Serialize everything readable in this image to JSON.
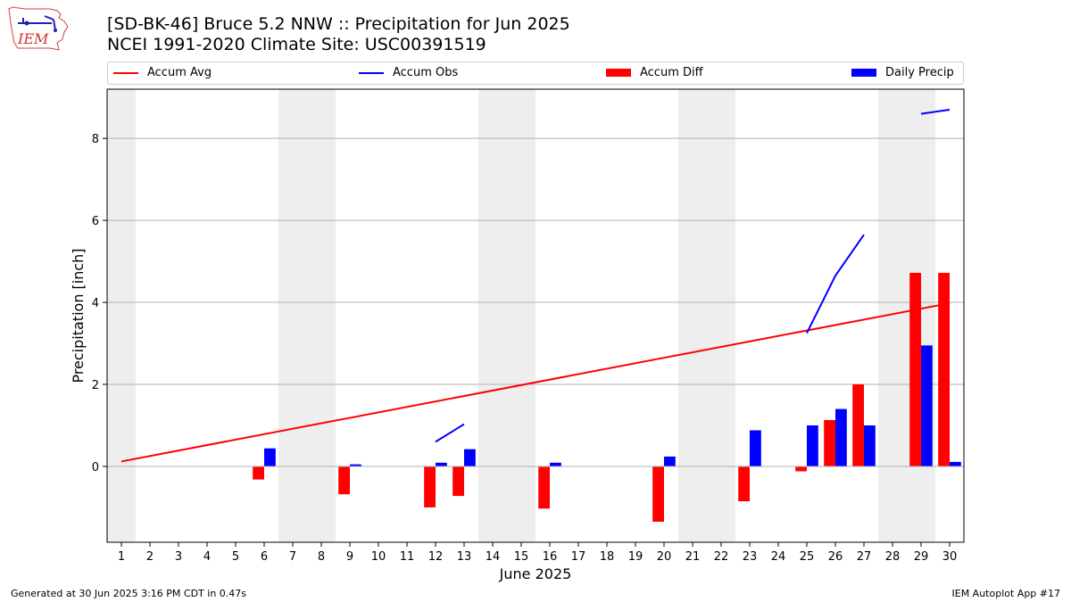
{
  "title_line1": "[SD-BK-46] Bruce 5.2 NNW :: Precipitation for Jun 2025",
  "title_line2": "NCEI 1991-2020 Climate Site: USC00391519",
  "logo_text": "IEM",
  "footer_left": "Generated at 30 Jun 2025 3:16 PM CDT in 0.47s",
  "footer_right": "IEM Autoplot App #17",
  "colors": {
    "accum_avg": "#ff0000",
    "accum_obs": "#0000ff",
    "accum_diff": "#ff0000",
    "daily_precip": "#0000ff",
    "weekend_shade": "#eeeeee",
    "grid": "#b0b0b0"
  },
  "legend": [
    {
      "label": "Accum Avg",
      "kind": "line",
      "color": "#ff0000"
    },
    {
      "label": "Accum Obs",
      "kind": "line",
      "color": "#0000ff"
    },
    {
      "label": "Accum Diff",
      "kind": "box",
      "color": "#ff0000"
    },
    {
      "label": "Daily Precip",
      "kind": "box",
      "color": "#0000ff"
    }
  ],
  "chart_data": {
    "type": "bar",
    "xlabel": "June 2025",
    "ylabel": "Precipitation [inch]",
    "xlim": [
      0.5,
      30.5
    ],
    "ylim": [
      -1.85,
      9.2
    ],
    "yticks": [
      0,
      2,
      4,
      6,
      8
    ],
    "xticks": [
      1,
      2,
      3,
      4,
      5,
      6,
      7,
      8,
      9,
      10,
      11,
      12,
      13,
      14,
      15,
      16,
      17,
      18,
      19,
      20,
      21,
      22,
      23,
      24,
      25,
      26,
      27,
      28,
      29,
      30
    ],
    "grid": "y",
    "legend_position": "top",
    "weekend_bands": [
      [
        0.5,
        1.5
      ],
      [
        6.5,
        8.5
      ],
      [
        13.5,
        15.5
      ],
      [
        20.5,
        22.5
      ],
      [
        27.5,
        29.5
      ]
    ],
    "accum_avg": {
      "name": "Accum Avg",
      "x": [
        1,
        30
      ],
      "y": [
        0.12,
        3.98
      ]
    },
    "accum_obs_segments": [
      {
        "x": [
          12,
          13
        ],
        "y": [
          0.6,
          1.03
        ]
      },
      {
        "x": [
          25,
          26,
          27
        ],
        "y": [
          3.25,
          4.65,
          5.65
        ]
      },
      {
        "x": [
          29,
          30
        ],
        "y": [
          8.6,
          8.7
        ]
      }
    ],
    "accum_diff": {
      "name": "Accum Diff",
      "days": [
        6,
        9,
        12,
        13,
        16,
        20,
        23,
        25,
        26,
        27,
        29,
        30
      ],
      "values": [
        -0.32,
        -0.68,
        -1.0,
        -0.72,
        -1.03,
        -1.35,
        -0.85,
        -0.12,
        1.13,
        2.0,
        4.72,
        4.72
      ]
    },
    "daily_precip": {
      "name": "Daily Precip",
      "days": [
        6,
        9,
        12,
        13,
        16,
        20,
        23,
        25,
        26,
        27,
        29,
        30
      ],
      "values": [
        0.44,
        0.05,
        0.09,
        0.42,
        0.09,
        0.24,
        0.88,
        1.0,
        1.4,
        1.0,
        2.95,
        0.11
      ]
    }
  }
}
